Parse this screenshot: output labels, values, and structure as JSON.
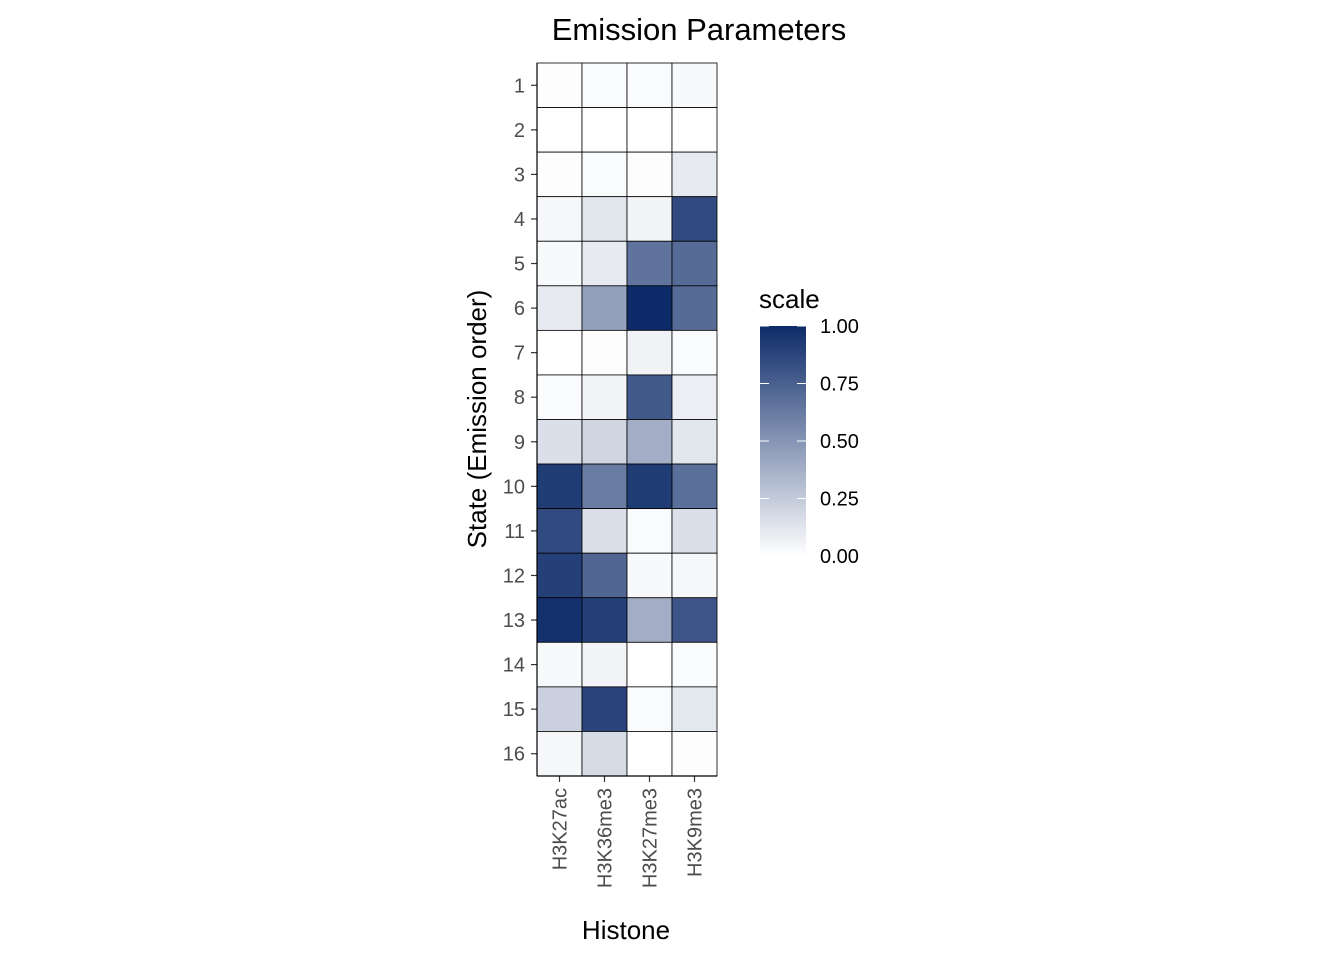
{
  "chart_data": {
    "type": "heatmap",
    "title": "Emission Parameters",
    "xlabel": "Histone",
    "ylabel": "State (Emission order)",
    "x_categories": [
      "H3K27ac",
      "H3K36me3",
      "H3K27me3",
      "H3K9me3"
    ],
    "y_categories": [
      "1",
      "2",
      "3",
      "4",
      "5",
      "6",
      "7",
      "8",
      "9",
      "10",
      "11",
      "12",
      "13",
      "14",
      "15",
      "16"
    ],
    "values": [
      [
        0.01,
        0.02,
        0.02,
        0.03
      ],
      [
        0.0,
        0.0,
        0.0,
        0.0
      ],
      [
        0.01,
        0.02,
        0.01,
        0.1
      ],
      [
        0.04,
        0.12,
        0.05,
        0.85
      ],
      [
        0.03,
        0.1,
        0.66,
        0.7
      ],
      [
        0.1,
        0.45,
        1.0,
        0.7
      ],
      [
        0.0,
        0.01,
        0.06,
        0.02
      ],
      [
        0.02,
        0.05,
        0.78,
        0.08
      ],
      [
        0.15,
        0.2,
        0.38,
        0.12
      ],
      [
        0.92,
        0.62,
        0.92,
        0.68
      ],
      [
        0.85,
        0.15,
        0.02,
        0.15
      ],
      [
        0.9,
        0.72,
        0.03,
        0.04
      ],
      [
        0.97,
        0.9,
        0.38,
        0.8
      ],
      [
        0.03,
        0.05,
        0.0,
        0.02
      ],
      [
        0.22,
        0.88,
        0.02,
        0.11
      ],
      [
        0.04,
        0.17,
        0.0,
        0.01
      ]
    ],
    "color_scale": {
      "low": "#ffffff",
      "high": "#0d2b69"
    },
    "legend": {
      "title": "scale",
      "position": "right",
      "range": [
        0,
        1
      ],
      "breaks": [
        "0.00",
        "0.25",
        "0.50",
        "0.75",
        "1.00"
      ]
    },
    "grid": false
  }
}
